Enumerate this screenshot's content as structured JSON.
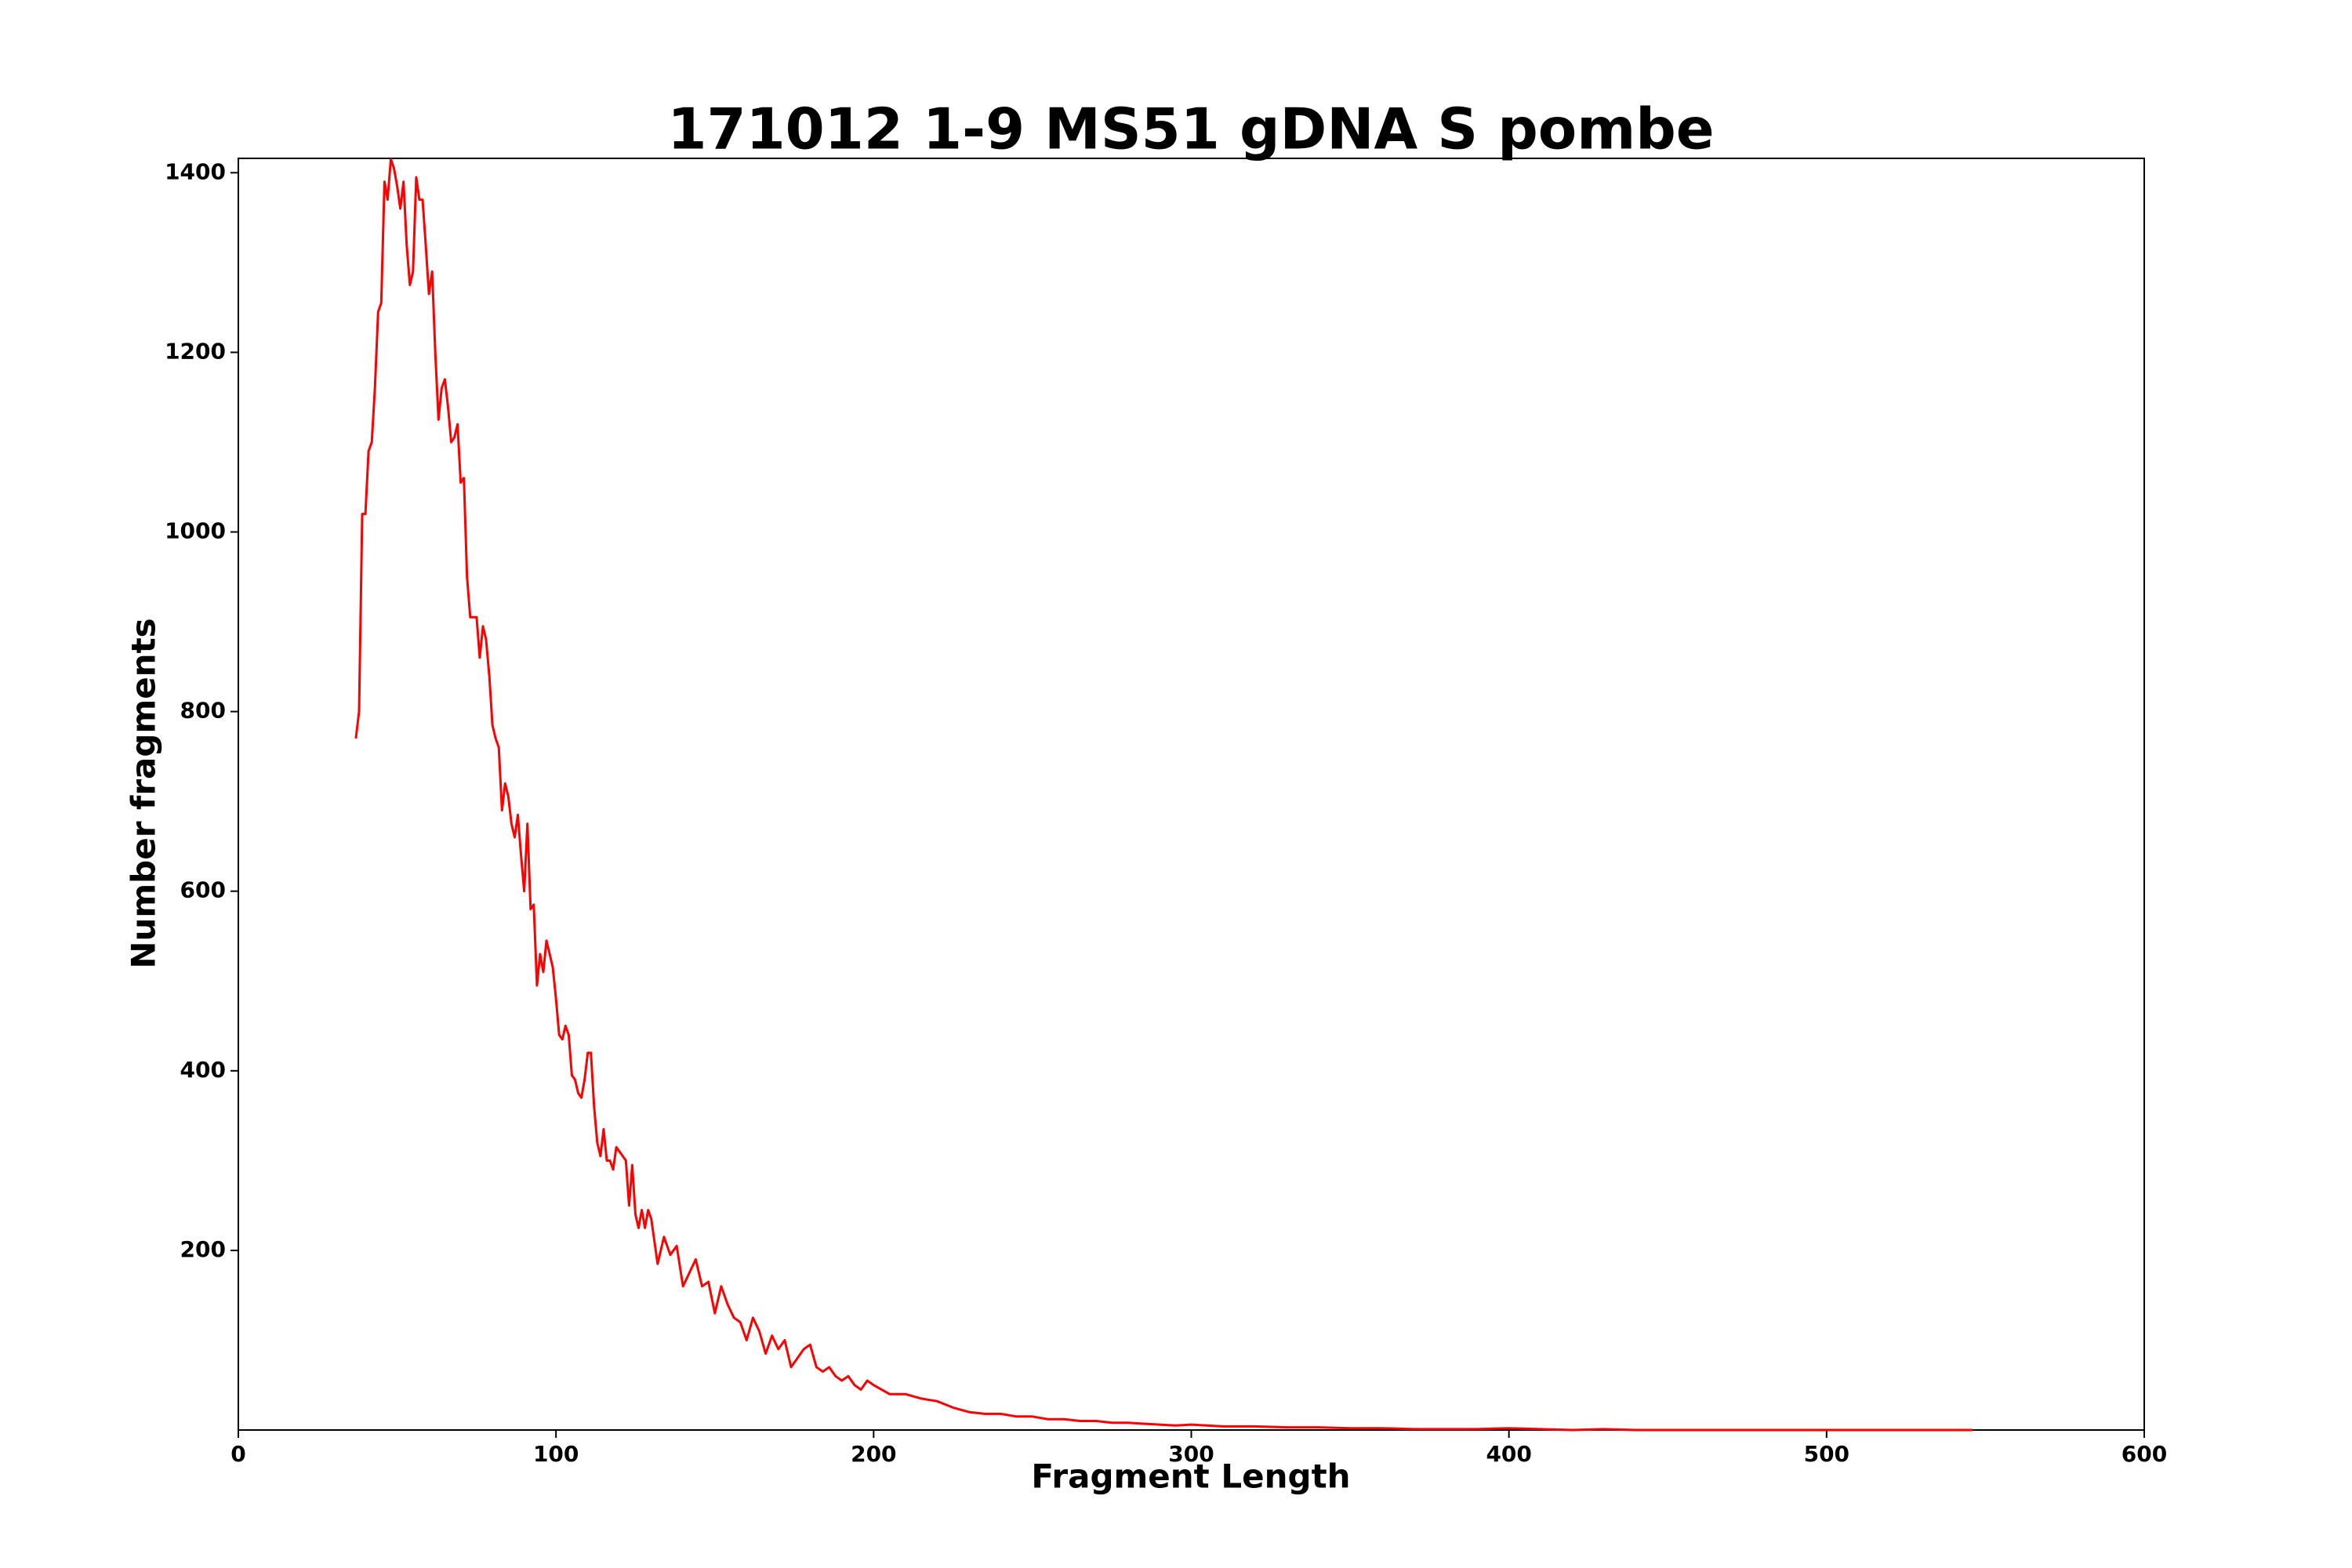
{
  "chart_data": {
    "type": "line",
    "title": "171012 1-9 MS51 gDNA S pombe",
    "x_label": "Fragment Length",
    "y_label": "Number fragments",
    "xlim": [
      0,
      600
    ],
    "xticks": [
      0,
      100,
      200,
      300,
      400,
      500,
      600
    ],
    "ylim": [
      0,
      1416
    ],
    "yticks": [
      200,
      400,
      600,
      800,
      1000,
      1200,
      1400
    ],
    "grid": false,
    "series": [
      {
        "color": "#ff0000",
        "x": [
          37,
          38,
          39,
          40,
          41,
          42,
          43,
          44,
          45,
          46,
          47,
          48,
          49,
          50,
          51,
          52,
          53,
          54,
          55,
          56,
          57,
          58,
          59,
          60,
          61,
          62,
          63,
          64,
          65,
          66,
          67,
          68,
          69,
          70,
          71,
          72,
          73,
          74,
          75,
          76,
          77,
          78,
          79,
          80,
          81,
          82,
          83,
          84,
          85,
          86,
          87,
          88,
          89,
          90,
          91,
          92,
          93,
          94,
          95,
          96,
          97,
          98,
          99,
          100,
          101,
          102,
          103,
          104,
          105,
          106,
          107,
          108,
          109,
          110,
          111,
          112,
          113,
          114,
          115,
          116,
          117,
          118,
          119,
          120,
          121,
          122,
          123,
          124,
          125,
          126,
          127,
          128,
          129,
          130,
          132,
          134,
          136,
          138,
          140,
          142,
          144,
          146,
          148,
          150,
          152,
          154,
          156,
          158,
          160,
          162,
          164,
          166,
          168,
          170,
          172,
          174,
          176,
          178,
          180,
          182,
          184,
          186,
          188,
          190,
          192,
          194,
          196,
          198,
          200,
          205,
          210,
          215,
          220,
          225,
          230,
          235,
          240,
          245,
          250,
          255,
          260,
          265,
          270,
          275,
          280,
          285,
          290,
          295,
          300,
          310,
          320,
          330,
          340,
          350,
          360,
          370,
          380,
          390,
          400,
          410,
          420,
          430,
          440,
          460,
          480,
          500,
          520,
          546
        ],
        "values": [
          770,
          800,
          1020,
          1020,
          1090,
          1100,
          1160,
          1245,
          1255,
          1390,
          1370,
          1415,
          1405,
          1385,
          1360,
          1390,
          1320,
          1275,
          1290,
          1395,
          1370,
          1370,
          1320,
          1265,
          1290,
          1200,
          1125,
          1160,
          1170,
          1140,
          1100,
          1105,
          1120,
          1055,
          1060,
          950,
          905,
          905,
          905,
          860,
          895,
          880,
          840,
          785,
          770,
          760,
          690,
          720,
          705,
          675,
          660,
          685,
          640,
          600,
          675,
          580,
          585,
          495,
          530,
          510,
          545,
          530,
          515,
          480,
          440,
          435,
          450,
          440,
          395,
          390,
          375,
          370,
          390,
          420,
          420,
          360,
          320,
          305,
          335,
          300,
          300,
          290,
          315,
          310,
          305,
          300,
          250,
          295,
          240,
          225,
          245,
          225,
          245,
          235,
          185,
          215,
          195,
          205,
          160,
          175,
          190,
          160,
          165,
          130,
          160,
          140,
          125,
          120,
          100,
          125,
          110,
          85,
          105,
          90,
          100,
          70,
          80,
          90,
          95,
          70,
          65,
          70,
          60,
          55,
          60,
          50,
          45,
          55,
          50,
          40,
          40,
          35,
          32,
          25,
          20,
          18,
          18,
          15,
          15,
          12,
          12,
          10,
          10,
          8,
          8,
          7,
          6,
          5,
          6,
          4,
          4,
          3,
          3,
          2,
          2,
          1,
          1,
          1,
          2,
          1,
          0,
          1,
          0,
          0,
          0,
          0,
          0,
          0
        ]
      }
    ]
  }
}
